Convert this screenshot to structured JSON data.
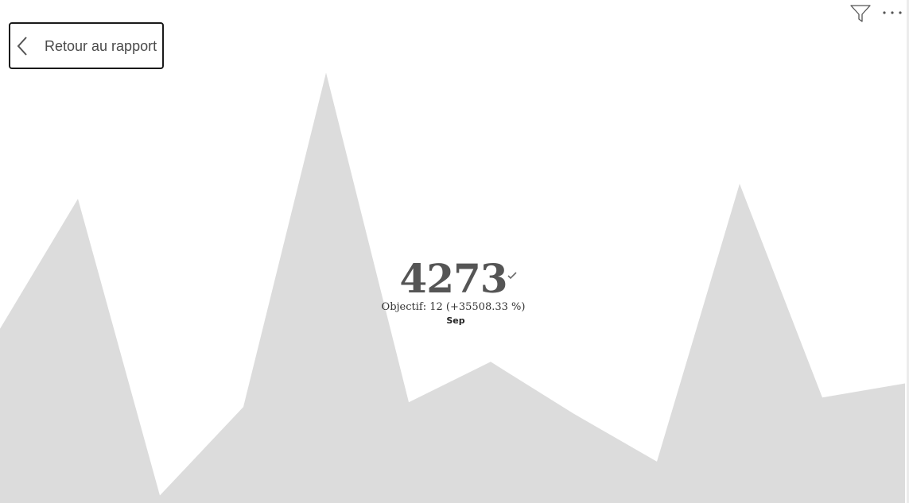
{
  "nav": {
    "back_label": "Retour au rapport"
  },
  "toolbar": {
    "filter_icon": "filter-icon",
    "more_icon": "more-options-icon"
  },
  "kpi": {
    "value": "4273",
    "target_text": "Objectif: 12 (+35508.33 %)",
    "period": "Sep",
    "status_icon": "check-icon"
  },
  "colors": {
    "area_fill": "#dcdcdc",
    "kpi_text": "#555555",
    "button_border": "#1a1a1a"
  },
  "chart_data": {
    "type": "area",
    "values": [
      1850,
      3230,
      80,
      1020,
      4570,
      1070,
      1500,
      950,
      440,
      3390,
      1120,
      1270
    ],
    "ylim": [
      0,
      5500
    ],
    "grid": false
  }
}
